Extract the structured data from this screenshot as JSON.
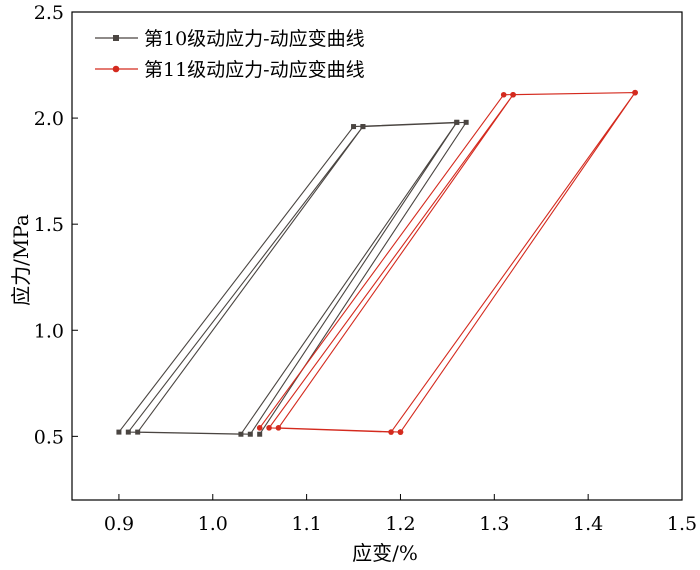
{
  "chart_data": {
    "type": "line",
    "title": "",
    "xlabel": "应变/%",
    "ylabel": "应力/MPa",
    "xlim": [
      0.85,
      1.5
    ],
    "ylim": [
      0.2,
      2.5
    ],
    "xticks": [
      "0.9",
      "1.0",
      "1.1",
      "1.2",
      "1.3",
      "1.4",
      "1.5"
    ],
    "yticks": [
      "0.5",
      "1.0",
      "1.5",
      "2.0",
      "2.5"
    ],
    "legend_position": "top-left",
    "series": [
      {
        "name": "第10级动应力-动应变曲线",
        "color": "#4a4541",
        "marker": "square",
        "x": [
          0.9,
          1.15,
          1.26,
          1.03,
          0.91,
          1.16,
          1.26,
          1.04,
          0.92,
          1.16,
          1.27,
          1.05
        ],
        "y": [
          0.52,
          1.96,
          1.98,
          0.51,
          0.52,
          1.96,
          1.98,
          0.51,
          0.52,
          1.96,
          1.98,
          0.51
        ]
      },
      {
        "name": "第11级动应力-动应变曲线",
        "color": "#d42a1e",
        "marker": "circle",
        "x": [
          1.05,
          1.31,
          1.45,
          1.19,
          1.06,
          1.32,
          1.45,
          1.2,
          1.07,
          1.32,
          1.45,
          1.2
        ],
        "y": [
          0.54,
          2.11,
          2.12,
          0.52,
          0.54,
          2.11,
          2.12,
          0.52,
          0.54,
          2.11,
          2.12,
          0.52
        ]
      }
    ]
  }
}
